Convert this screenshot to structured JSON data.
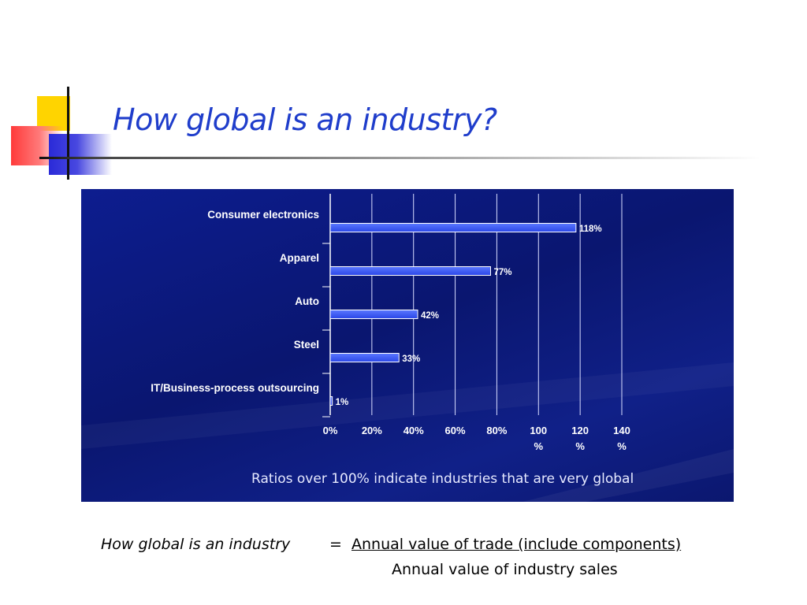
{
  "slide": {
    "title": "How global is an industry?",
    "colors": {
      "title": "#1f3dcb",
      "panel": "#0d1d8f",
      "bar": "#3b5bff"
    }
  },
  "chart_data": {
    "type": "bar",
    "orientation": "horizontal",
    "categories": [
      "Consumer electronics",
      "Apparel",
      "Auto",
      "Steel",
      "IT/Business-process outsourcing"
    ],
    "values": [
      118,
      77,
      42,
      33,
      1
    ],
    "data_labels": [
      "118%",
      "77%",
      "42%",
      "33%",
      "1%"
    ],
    "xlim": [
      0,
      140
    ],
    "xticks": [
      {
        "value": 0,
        "lines": [
          "0%"
        ]
      },
      {
        "value": 20,
        "lines": [
          "20%"
        ]
      },
      {
        "value": 40,
        "lines": [
          "40%"
        ]
      },
      {
        "value": 60,
        "lines": [
          "60%"
        ]
      },
      {
        "value": 80,
        "lines": [
          "80%"
        ]
      },
      {
        "value": 100,
        "lines": [
          "100",
          "%"
        ]
      },
      {
        "value": 120,
        "lines": [
          "120",
          "%"
        ]
      },
      {
        "value": 140,
        "lines": [
          "140",
          "%"
        ]
      }
    ],
    "grid": true,
    "annotation": "Ratios over 100% indicate industries that are very global"
  },
  "formula": {
    "lhs": "How global is an industry",
    "eq": "=",
    "numerator": "Annual value of trade (include components)",
    "denominator": "Annual value of industry sales"
  }
}
